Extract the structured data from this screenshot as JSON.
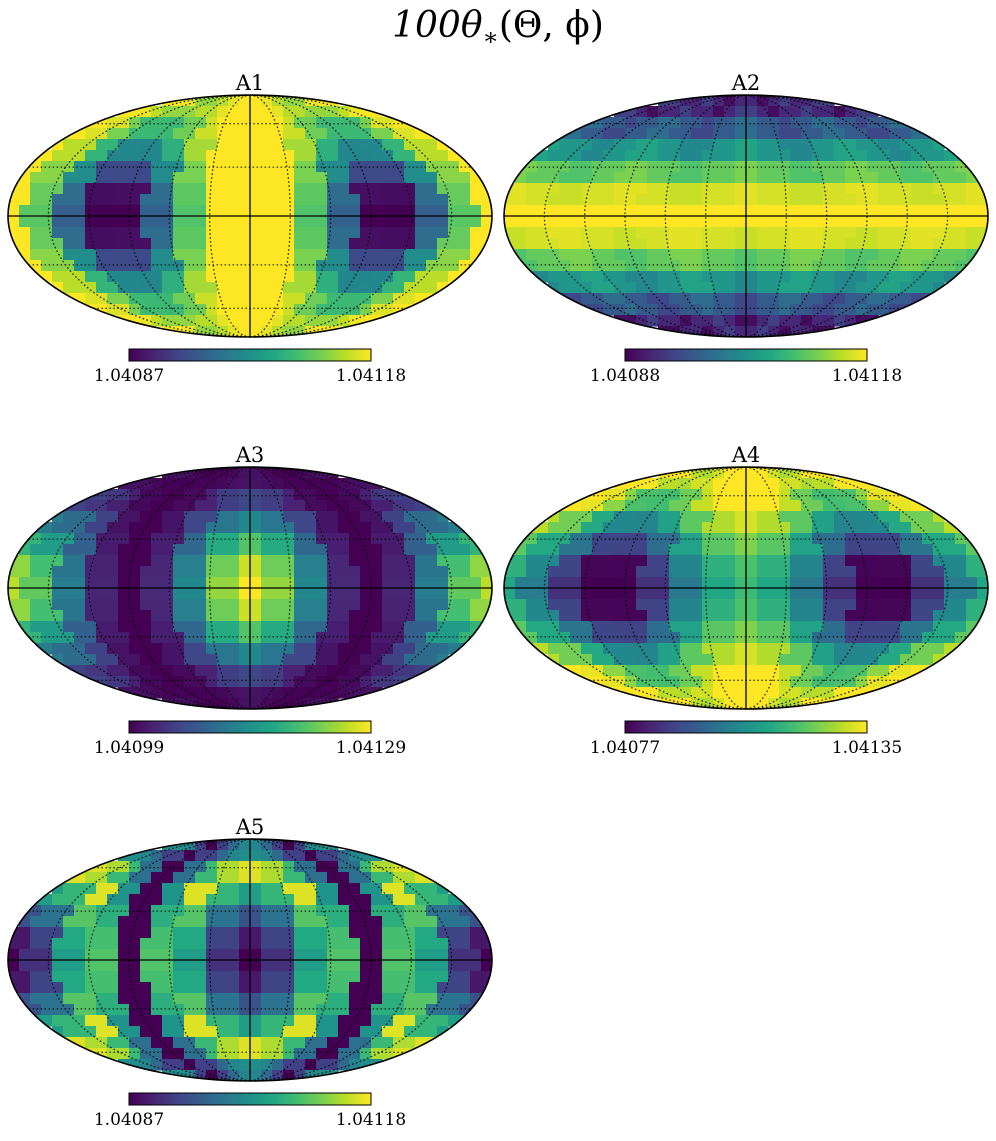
{
  "figure": {
    "title_prefix": "100θ",
    "title_sub": "∗",
    "title_args": "(Θ, ϕ)"
  },
  "chart_data": [
    {
      "type": "heatmap",
      "projection": "mollweide",
      "title": "A1",
      "colormap": "viridis",
      "colorbar": {
        "min_label": "1.04087",
        "max_label": "1.04118",
        "vmin": 1.04087,
        "vmax": 1.04118
      },
      "pattern": "two dark lobes at longitude ±105° on the equator, yellow band along the central meridian and rim"
    },
    {
      "type": "heatmap",
      "projection": "mollweide",
      "title": "A2",
      "colormap": "viridis",
      "colorbar": {
        "min_label": "1.04088",
        "max_label": "1.04118",
        "vmin": 1.04088,
        "vmax": 1.04118
      },
      "pattern": "bright equatorial band, dark poles"
    },
    {
      "type": "heatmap",
      "projection": "mollweide",
      "title": "A3",
      "colormap": "viridis",
      "colorbar": {
        "min_label": "1.04099",
        "max_label": "1.04129",
        "vmin": 1.04099,
        "vmax": 1.04129
      },
      "pattern": "bright center and left/right edges, dark ring around center"
    },
    {
      "type": "heatmap",
      "projection": "mollweide",
      "title": "A4",
      "colormap": "viridis",
      "colorbar": {
        "min_label": "1.04077",
        "max_label": "1.04135",
        "vmin": 1.04077,
        "vmax": 1.04135
      },
      "pattern": "two dark lobes at longitude ±105° on the equator, bright poles"
    },
    {
      "type": "heatmap",
      "projection": "mollweide",
      "title": "A5",
      "colormap": "viridis",
      "colorbar": {
        "min_label": "1.04087",
        "max_label": "1.04118",
        "vmin": 1.04087,
        "vmax": 1.04118
      },
      "pattern": "dark center and dark left/right edges, yellow ring around center"
    }
  ]
}
